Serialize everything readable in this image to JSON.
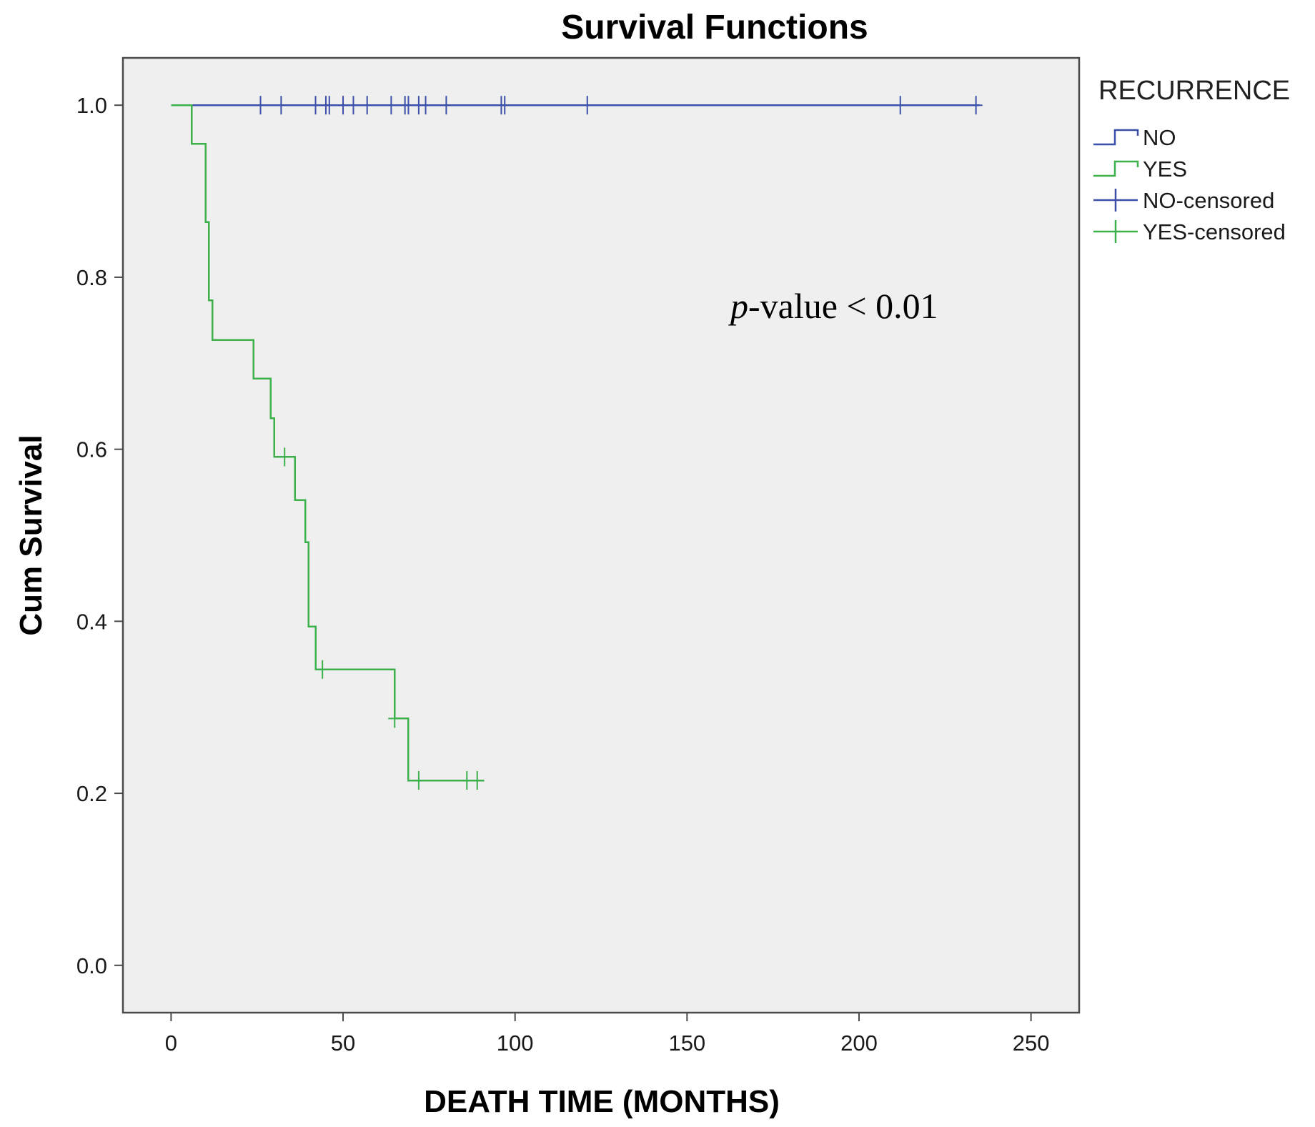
{
  "chart_data": {
    "type": "line",
    "title": "Survival Functions",
    "xlabel": "DEATH TIME (MONTHS)",
    "ylabel": "Cum Survival",
    "xlim": [
      -14,
      264
    ],
    "ylim": [
      -0.055,
      1.055
    ],
    "xticks": [
      0,
      50,
      100,
      150,
      200,
      250
    ],
    "xtick_labels": [
      "0",
      "50",
      "100",
      "150",
      "200",
      "250"
    ],
    "yticks": [
      0.0,
      0.2,
      0.4,
      0.6,
      0.8,
      1.0
    ],
    "ytick_labels": [
      "0.0",
      "0.2",
      "0.4",
      "0.6",
      "0.8",
      "1.0"
    ],
    "grid": false,
    "legend_position": "outside-right",
    "legend_title": "RECURRENCE",
    "legend": [
      {
        "label": "NO",
        "kind": "step",
        "color": "#3b4fa8"
      },
      {
        "label": "YES",
        "kind": "step",
        "color": "#3cb04a"
      },
      {
        "label": "NO-censored",
        "kind": "censor",
        "color": "#3b4fa8"
      },
      {
        "label": "YES-censored",
        "kind": "censor",
        "color": "#3cb04a"
      }
    ],
    "annotation": {
      "italic": "p",
      "text": "-value < 0.01"
    },
    "series": [
      {
        "name": "NO",
        "color": "#3b4fa8",
        "steps": [
          [
            0,
            1.0
          ],
          [
            235,
            1.0
          ]
        ],
        "censored": [
          [
            26,
            1.0
          ],
          [
            32,
            1.0
          ],
          [
            42,
            1.0
          ],
          [
            45,
            1.0
          ],
          [
            46,
            1.0
          ],
          [
            50,
            1.0
          ],
          [
            53,
            1.0
          ],
          [
            57,
            1.0
          ],
          [
            64,
            1.0
          ],
          [
            68,
            1.0
          ],
          [
            69,
            1.0
          ],
          [
            72,
            1.0
          ],
          [
            74,
            1.0
          ],
          [
            80,
            1.0
          ],
          [
            96,
            1.0
          ],
          [
            97,
            1.0
          ],
          [
            121,
            1.0
          ],
          [
            212,
            1.0
          ],
          [
            234,
            1.0
          ]
        ]
      },
      {
        "name": "YES",
        "color": "#3cb04a",
        "steps": [
          [
            0,
            1.0
          ],
          [
            6,
            0.955
          ],
          [
            10,
            0.864
          ],
          [
            11,
            0.773
          ],
          [
            12,
            0.727
          ],
          [
            24,
            0.682
          ],
          [
            29,
            0.636
          ],
          [
            30,
            0.591
          ],
          [
            36,
            0.541
          ],
          [
            39,
            0.492
          ],
          [
            40,
            0.394
          ],
          [
            42,
            0.344
          ],
          [
            65,
            0.287
          ],
          [
            69,
            0.215
          ],
          [
            91,
            0.215
          ]
        ],
        "censored": [
          [
            33,
            0.591
          ],
          [
            44,
            0.344
          ],
          [
            65,
            0.287
          ],
          [
            72,
            0.215
          ],
          [
            86,
            0.215
          ],
          [
            89,
            0.215
          ]
        ]
      }
    ]
  }
}
